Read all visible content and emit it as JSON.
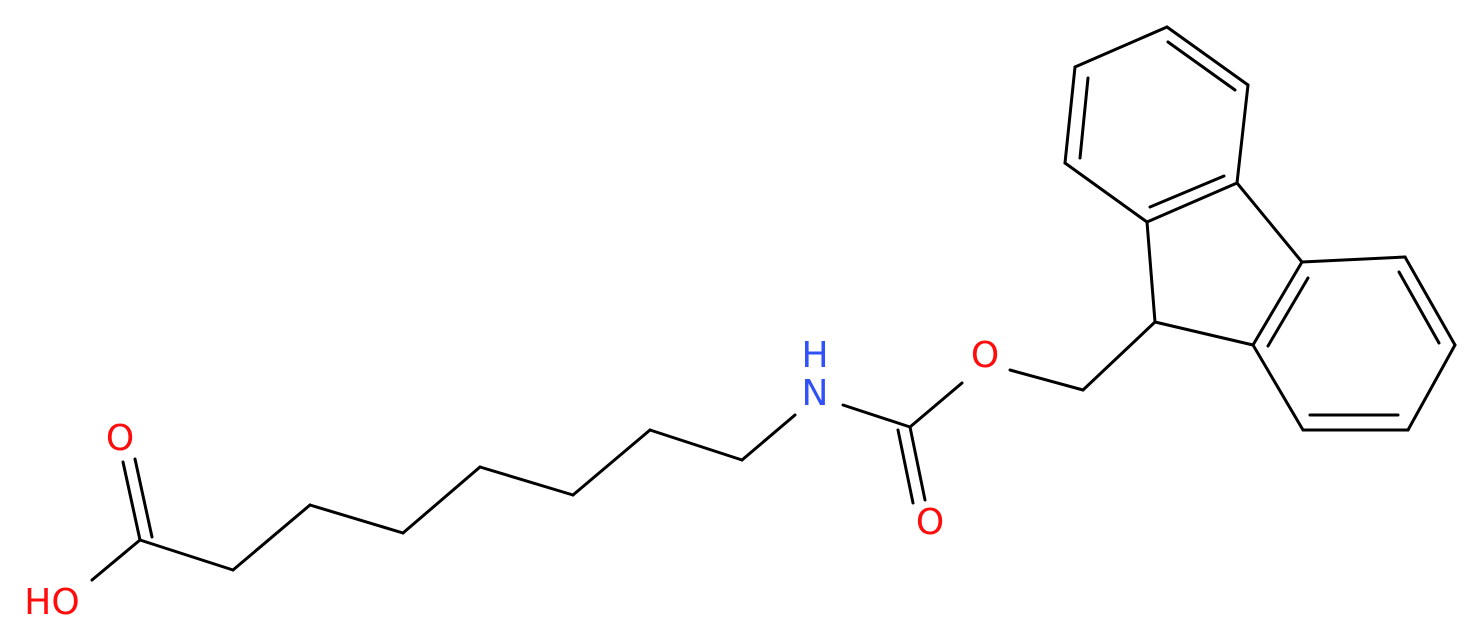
{
  "atoms": [
    {
      "label": "O"
    },
    {
      "label": "HO"
    },
    {
      "label": "N"
    },
    {
      "label": "H"
    },
    {
      "label": "O"
    },
    {
      "label": "O"
    }
  ]
}
